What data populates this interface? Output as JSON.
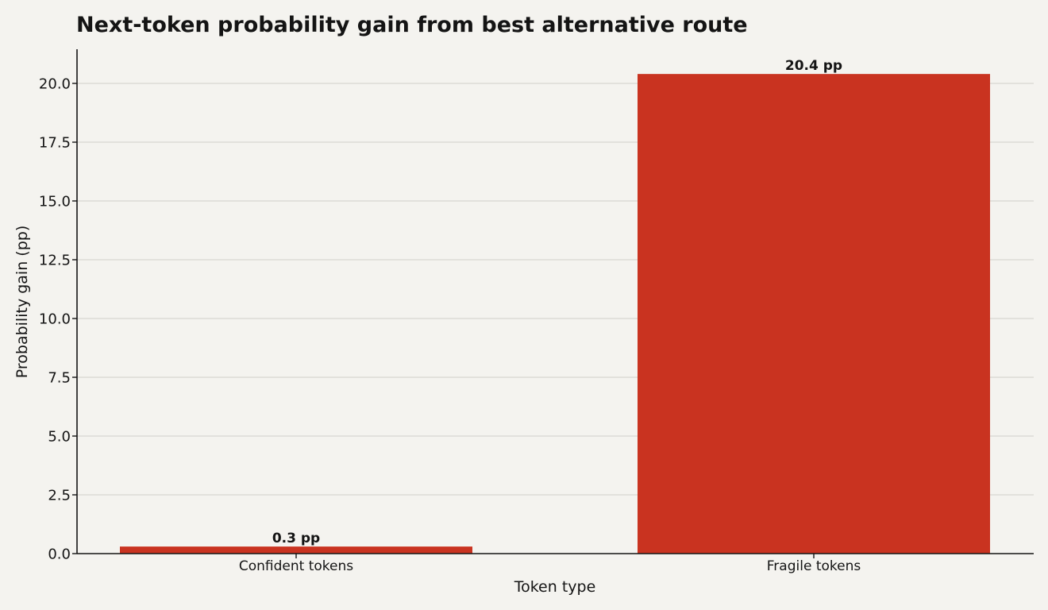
{
  "chart_data": {
    "type": "bar",
    "title": "Next-token probability gain from best alternative route",
    "xlabel": "Token type",
    "ylabel": "Probability gain (pp)",
    "categories": [
      "Confident tokens",
      "Fragile tokens"
    ],
    "values": [
      0.3,
      20.4
    ],
    "data_labels": [
      "0.3 pp",
      "20.4 pp"
    ],
    "yticks": [
      0.0,
      2.5,
      5.0,
      7.5,
      10.0,
      12.5,
      15.0,
      17.5,
      20.0
    ],
    "ytick_labels": [
      "0.0",
      "2.5",
      "5.0",
      "7.5",
      "10.0",
      "12.5",
      "15.0",
      "17.5",
      "20.0"
    ],
    "ylim": [
      0,
      21.42
    ],
    "grid": "horizontal",
    "legend": "none",
    "colors": {
      "bar": "#c93320",
      "grid": "#dcdbd6",
      "axis": "#141414",
      "background": "#f4f3ef"
    }
  }
}
